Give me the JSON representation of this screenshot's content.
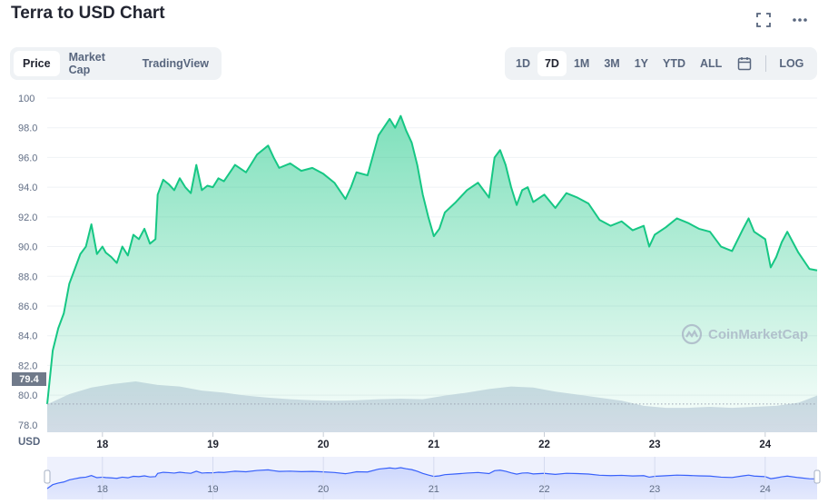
{
  "header": {
    "title": "Terra to USD Chart"
  },
  "tabs": [
    {
      "label": "Price",
      "active": true
    },
    {
      "label": "Market Cap",
      "active": false
    },
    {
      "label": "TradingView",
      "active": false
    }
  ],
  "ranges": [
    {
      "label": "1D",
      "active": false
    },
    {
      "label": "7D",
      "active": true
    },
    {
      "label": "1M",
      "active": false
    },
    {
      "label": "3M",
      "active": false
    },
    {
      "label": "1Y",
      "active": false
    },
    {
      "label": "YTD",
      "active": false
    },
    {
      "label": "ALL",
      "active": false
    }
  ],
  "log_label": "LOG",
  "icons": {
    "fullscreen": "fullscreen-icon",
    "more": "more-icon",
    "calendar": "calendar-icon",
    "watermark": "coinmarketcap-logo-icon"
  },
  "colors": {
    "line": "#16c784",
    "area": "#16c784",
    "volume": "#cfd6e4",
    "navigator_line": "#3861fb"
  },
  "currency_label": "USD",
  "current_price_label": "79.4",
  "watermark_text": "CoinMarketCap",
  "chart_data": {
    "type": "area",
    "title": "",
    "xlabel": "",
    "ylabel": "",
    "x_ticks": [
      "18",
      "19",
      "20",
      "21",
      "22",
      "23",
      "24"
    ],
    "y_ticks": [
      "100",
      "98.0",
      "96.0",
      "94.0",
      "92.0",
      "90.0",
      "88.0",
      "86.0",
      "84.0",
      "82.0",
      "80.0",
      "78.0"
    ],
    "ylim": [
      77.5,
      100
    ],
    "xlim": [
      17.5,
      24.47
    ],
    "reference_line": 79.4,
    "grid": true,
    "series": [
      {
        "x": [
          17.5,
          17.55,
          17.6,
          17.65,
          17.7,
          17.75,
          17.8,
          17.85,
          17.9,
          17.95,
          18.0,
          18.03,
          18.08,
          18.13,
          18.18,
          18.23,
          18.28,
          18.33,
          18.38,
          18.43,
          18.48,
          18.5,
          18.55,
          18.6,
          18.65,
          18.7,
          18.75,
          18.8,
          18.85,
          18.9,
          18.95,
          19.0,
          19.05,
          19.1,
          19.2,
          19.3,
          19.4,
          19.5,
          19.55,
          19.6,
          19.7,
          19.8,
          19.9,
          20.0,
          20.1,
          20.2,
          20.25,
          20.3,
          20.4,
          20.5,
          20.6,
          20.65,
          20.7,
          20.75,
          20.8,
          20.85,
          20.9,
          20.95,
          21.0,
          21.05,
          21.1,
          21.2,
          21.3,
          21.4,
          21.5,
          21.55,
          21.6,
          21.65,
          21.7,
          21.75,
          21.8,
          21.85,
          21.9,
          22.0,
          22.1,
          22.2,
          22.3,
          22.4,
          22.5,
          22.6,
          22.7,
          22.8,
          22.9,
          22.95,
          23.0,
          23.1,
          23.2,
          23.3,
          23.4,
          23.5,
          23.6,
          23.7,
          23.8,
          23.85,
          23.9,
          24.0,
          24.05,
          24.1,
          24.15,
          24.2,
          24.3,
          24.4,
          24.47
        ],
        "y": [
          79.4,
          83.0,
          84.5,
          85.5,
          87.5,
          88.5,
          89.5,
          90.0,
          91.5,
          89.5,
          90.0,
          89.6,
          89.3,
          88.9,
          90.0,
          89.4,
          90.8,
          90.5,
          91.2,
          90.2,
          90.5,
          93.5,
          94.5,
          94.2,
          93.8,
          94.6,
          94.0,
          93.6,
          95.5,
          93.8,
          94.1,
          94.0,
          94.6,
          94.4,
          95.5,
          95.0,
          96.2,
          96.8,
          96.0,
          95.3,
          95.6,
          95.1,
          95.3,
          94.9,
          94.3,
          93.2,
          94.0,
          95.0,
          94.8,
          97.5,
          98.6,
          98.0,
          98.8,
          97.8,
          97.0,
          95.5,
          93.5,
          92.0,
          90.7,
          91.2,
          92.3,
          93.0,
          93.8,
          94.3,
          93.3,
          96.0,
          96.5,
          95.5,
          94.0,
          92.8,
          93.8,
          94.0,
          93.0,
          93.5,
          92.6,
          93.6,
          93.3,
          92.9,
          91.8,
          91.4,
          91.7,
          91.1,
          91.4,
          90.0,
          90.8,
          91.3,
          91.9,
          91.6,
          91.2,
          91.0,
          90.0,
          89.7,
          91.2,
          91.9,
          91.0,
          90.5,
          88.6,
          89.3,
          90.3,
          91.0,
          89.6,
          88.5,
          88.4
        ]
      }
    ],
    "volume": {
      "x": [
        17.5,
        17.7,
        17.9,
        18.1,
        18.3,
        18.5,
        18.7,
        18.9,
        19.1,
        19.3,
        19.5,
        19.7,
        19.9,
        20.1,
        20.3,
        20.5,
        20.7,
        20.9,
        21.1,
        21.3,
        21.5,
        21.7,
        21.9,
        22.1,
        22.3,
        22.5,
        22.7,
        22.9,
        23.1,
        23.3,
        23.5,
        23.7,
        23.9,
        24.1,
        24.3,
        24.47
      ],
      "relative": [
        0.55,
        0.75,
        0.88,
        0.95,
        1.0,
        0.93,
        0.9,
        0.82,
        0.78,
        0.72,
        0.68,
        0.65,
        0.63,
        0.62,
        0.63,
        0.65,
        0.66,
        0.65,
        0.72,
        0.78,
        0.85,
        0.9,
        0.88,
        0.8,
        0.74,
        0.68,
        0.62,
        0.52,
        0.48,
        0.48,
        0.5,
        0.48,
        0.5,
        0.52,
        0.58,
        0.72
      ]
    }
  }
}
